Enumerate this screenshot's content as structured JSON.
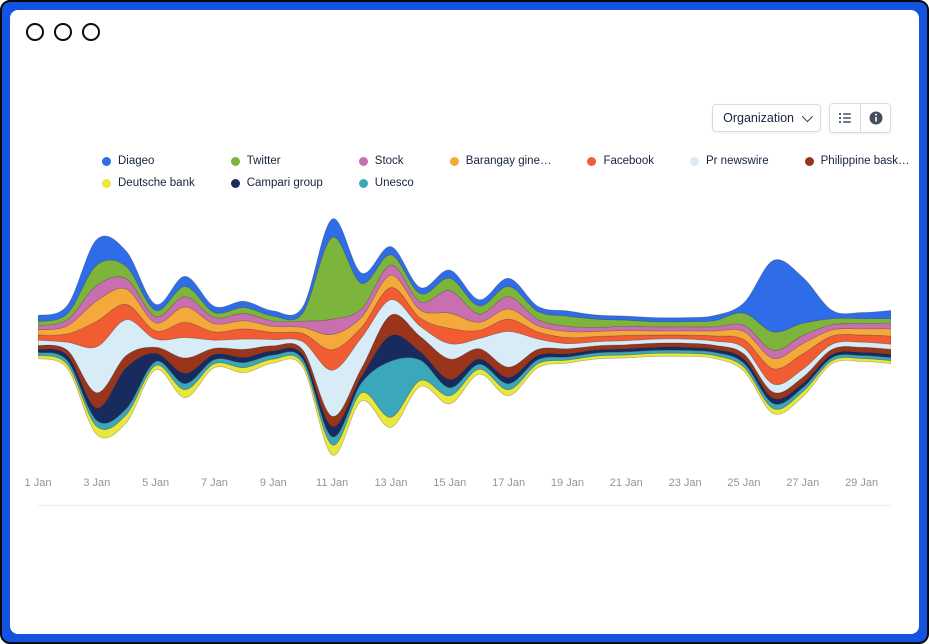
{
  "window": {
    "frame_color": "#1254df",
    "controls": [
      {
        "name": "close"
      },
      {
        "name": "minimize"
      },
      {
        "name": "zoom"
      }
    ]
  },
  "toolbar": {
    "dropdown": {
      "label": "Organization",
      "icon": "chevron-down-icon"
    },
    "buttons": [
      {
        "icon": "list-icon"
      },
      {
        "icon": "info-icon"
      }
    ]
  },
  "legend": [
    {
      "label": "Diageo",
      "color": "#2f6ce8"
    },
    {
      "label": "Twitter",
      "color": "#7db43c"
    },
    {
      "label": "Stock",
      "color": "#c96fb0"
    },
    {
      "label": "Barangay gine…",
      "color": "#f5a93b"
    },
    {
      "label": "Facebook",
      "color": "#f25c33"
    },
    {
      "label": "Pr newswire",
      "color": "#d8ecf8"
    },
    {
      "label": "Philippine bask…",
      "color": "#9a341a"
    },
    {
      "label": "Deutsche bank",
      "color": "#e9e63c"
    },
    {
      "label": "Campari group",
      "color": "#182a5e"
    },
    {
      "label": "Unesco",
      "color": "#3aa7ba"
    }
  ],
  "chart_data": {
    "type": "area",
    "variant": "streamgraph",
    "title": "",
    "xlabel": "",
    "ylabel": "",
    "grid": false,
    "legend_position": "top",
    "baseline": "silhouette-centered",
    "x": [
      "1 Jan",
      "2 Jan",
      "3 Jan",
      "4 Jan",
      "5 Jan",
      "6 Jan",
      "7 Jan",
      "8 Jan",
      "9 Jan",
      "10 Jan",
      "11 Jan",
      "12 Jan",
      "13 Jan",
      "14 Jan",
      "15 Jan",
      "16 Jan",
      "17 Jan",
      "18 Jan",
      "19 Jan",
      "20 Jan",
      "21 Jan",
      "22 Jan",
      "23 Jan",
      "24 Jan",
      "25 Jan",
      "26 Jan",
      "27 Jan",
      "28 Jan",
      "29 Jan",
      "30 Jan"
    ],
    "axis_tick_labels": [
      "1 Jan",
      "3 Jan",
      "5 Jan",
      "7 Jan",
      "9 Jan",
      "11 Jan",
      "13 Jan",
      "15 Jan",
      "17 Jan",
      "19 Jan",
      "21 Jan",
      "23 Jan",
      "25 Jan",
      "27 Jan",
      "29 Jan"
    ],
    "stack_order": [
      "Deutsche bank",
      "Unesco",
      "Campari group",
      "Philippine bask…",
      "Pr newswire",
      "Facebook",
      "Barangay gine…",
      "Stock",
      "Twitter",
      "Diageo"
    ],
    "series": [
      {
        "name": "Diageo",
        "color": "#2f6ce8",
        "values": [
          6,
          8,
          25,
          15,
          6,
          10,
          6,
          6,
          5,
          6,
          18,
          10,
          8,
          6,
          8,
          6,
          8,
          5,
          5,
          4,
          4,
          4,
          4,
          5,
          10,
          70,
          45,
          8,
          6,
          8
        ]
      },
      {
        "name": "Twitter",
        "color": "#7db43c",
        "values": [
          4,
          6,
          20,
          12,
          6,
          10,
          5,
          6,
          5,
          8,
          80,
          25,
          10,
          8,
          12,
          8,
          10,
          8,
          10,
          8,
          6,
          5,
          5,
          6,
          12,
          18,
          12,
          6,
          5,
          5
        ]
      },
      {
        "name": "Stock",
        "color": "#c96fb0",
        "values": [
          4,
          6,
          15,
          10,
          6,
          10,
          6,
          7,
          5,
          6,
          15,
          8,
          10,
          8,
          22,
          8,
          12,
          6,
          5,
          4,
          4,
          4,
          4,
          4,
          6,
          8,
          8,
          5,
          5,
          5
        ]
      },
      {
        "name": "Barangay gine…",
        "color": "#f5a93b",
        "values": [
          5,
          8,
          20,
          15,
          8,
          15,
          8,
          8,
          6,
          6,
          15,
          10,
          12,
          8,
          15,
          8,
          10,
          6,
          6,
          5,
          5,
          4,
          4,
          5,
          8,
          10,
          10,
          6,
          6,
          7
        ]
      },
      {
        "name": "Facebook",
        "color": "#f25c33",
        "values": [
          5,
          8,
          25,
          15,
          8,
          15,
          8,
          10,
          7,
          8,
          20,
          10,
          12,
          8,
          15,
          8,
          12,
          7,
          6,
          5,
          5,
          4,
          4,
          5,
          8,
          15,
          15,
          8,
          7,
          8
        ]
      },
      {
        "name": "Pr newswire",
        "color": "#d8ecf8",
        "values": [
          5,
          8,
          45,
          35,
          8,
          20,
          8,
          10,
          6,
          8,
          45,
          30,
          15,
          10,
          15,
          10,
          35,
          10,
          5,
          4,
          4,
          4,
          4,
          4,
          6,
          8,
          8,
          5,
          5,
          5
        ]
      },
      {
        "name": "Philippine bask…",
        "color": "#9a341a",
        "values": [
          4,
          5,
          15,
          12,
          6,
          15,
          6,
          8,
          5,
          5,
          10,
          8,
          20,
          15,
          20,
          10,
          10,
          6,
          5,
          4,
          4,
          4,
          4,
          4,
          5,
          6,
          6,
          5,
          5,
          5
        ]
      },
      {
        "name": "Deutsche bank",
        "color": "#e9e63c",
        "values": [
          3,
          4,
          8,
          8,
          4,
          8,
          4,
          5,
          4,
          4,
          10,
          8,
          10,
          6,
          8,
          5,
          6,
          4,
          3,
          3,
          3,
          3,
          3,
          3,
          4,
          5,
          5,
          3,
          3,
          3
        ]
      },
      {
        "name": "Campari group",
        "color": "#182a5e",
        "values": [
          3,
          5,
          12,
          40,
          8,
          10,
          5,
          5,
          4,
          4,
          10,
          6,
          25,
          8,
          8,
          5,
          6,
          4,
          3,
          3,
          3,
          3,
          3,
          3,
          4,
          5,
          4,
          3,
          3,
          3
        ]
      },
      {
        "name": "Unesco",
        "color": "#3aa7ba",
        "values": [
          3,
          4,
          6,
          6,
          4,
          6,
          4,
          5,
          4,
          4,
          8,
          10,
          55,
          20,
          8,
          5,
          6,
          4,
          3,
          3,
          3,
          3,
          3,
          3,
          4,
          5,
          4,
          3,
          3,
          3
        ]
      }
    ]
  }
}
